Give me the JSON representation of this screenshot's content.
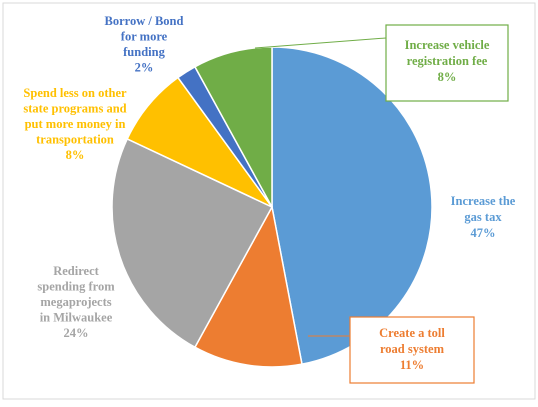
{
  "chart_data": {
    "type": "pie",
    "title": "",
    "slices": [
      {
        "label_lines": [
          "Increase the",
          "gas tax"
        ],
        "value": 47,
        "value_label": "47%",
        "color": "#5b9bd5"
      },
      {
        "label_lines": [
          "Create a toll",
          "road system"
        ],
        "value": 11,
        "value_label": "11%",
        "color": "#ed7d31"
      },
      {
        "label_lines": [
          "Redirect",
          "spending from",
          "megaprojects",
          "in Milwaukee"
        ],
        "value": 24,
        "value_label": "24%",
        "color": "#a5a5a5"
      },
      {
        "label_lines": [
          "Spend  less on other",
          "state programs  and",
          "put more money  in",
          "transportation"
        ],
        "value": 8,
        "value_label": "8%",
        "color": "#ffc000"
      },
      {
        "label_lines": [
          "Borrow  / Bond",
          "for more",
          "funding"
        ],
        "value": 2,
        "value_label": "2%",
        "color": "#4472c4"
      },
      {
        "label_lines": [
          "Increase vehicle",
          "registration fee"
        ],
        "value": 8,
        "value_label": "8%",
        "color": "#70ad47"
      }
    ]
  }
}
